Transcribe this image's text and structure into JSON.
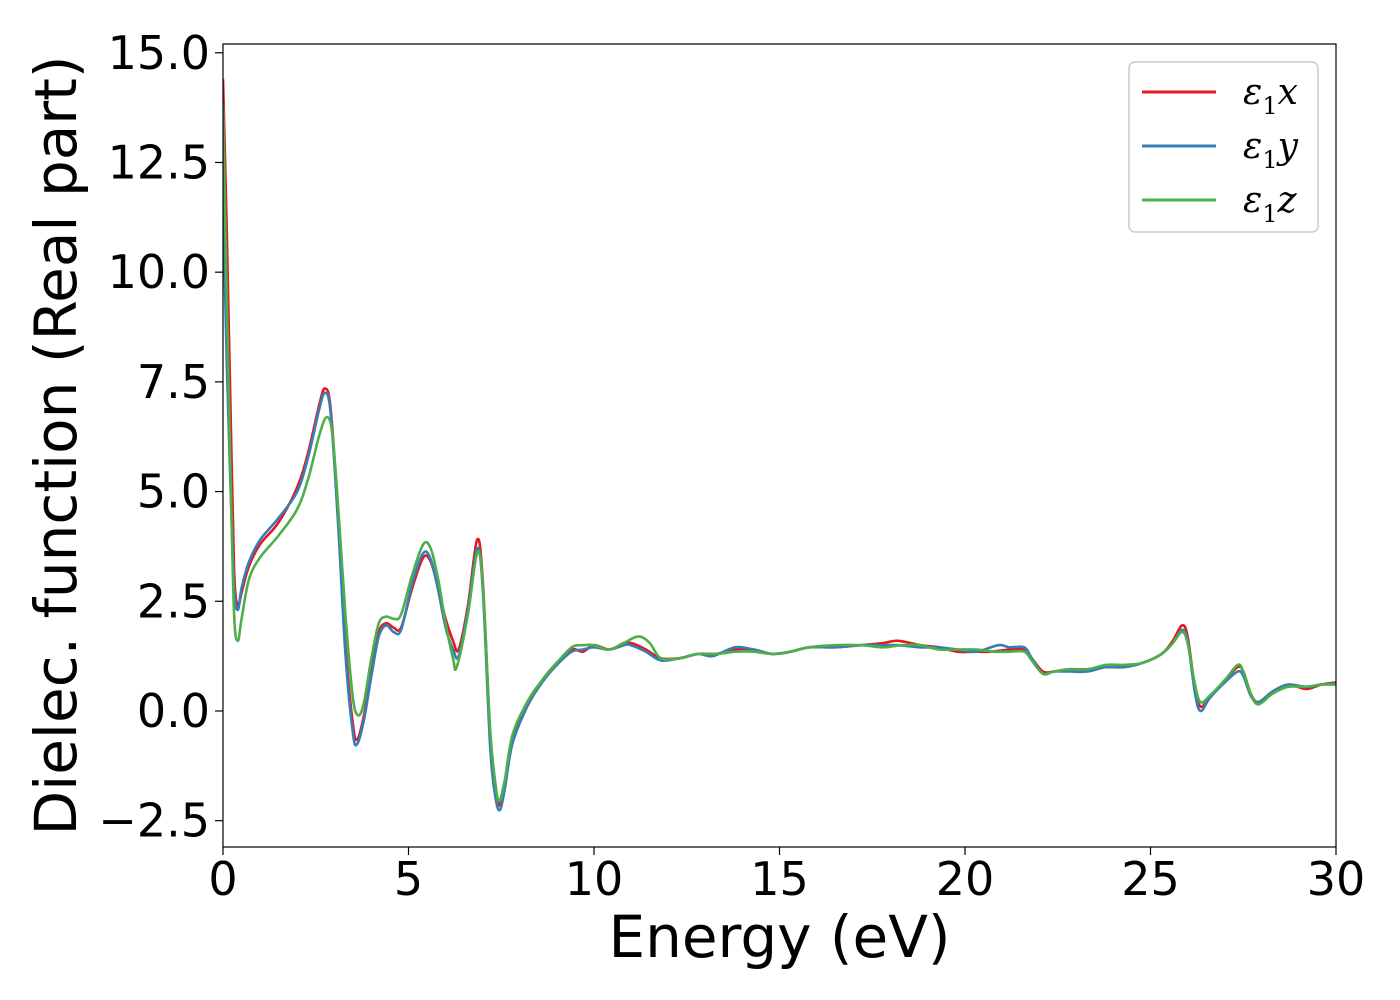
{
  "chart_data": {
    "type": "line",
    "title": "",
    "xlabel": "Energy (eV)",
    "ylabel": "Dielec. function (Real part)",
    "xlim": [
      0,
      30
    ],
    "ylim": [
      -3.1,
      15.2
    ],
    "x_ticks": [
      "0",
      "5",
      "10",
      "15",
      "20",
      "25",
      "30"
    ],
    "y_ticks": [
      "−2.5",
      "0.0",
      "2.5",
      "5.0",
      "7.5",
      "10.0",
      "12.5",
      "15.0"
    ],
    "grid": false,
    "legend_position": "top-right",
    "series": [
      {
        "name": "ε1x",
        "legend_base": "ε",
        "legend_sub": "1",
        "legend_var": "x",
        "color": "#e41a1c",
        "points": [
          [
            0.0,
            14.4
          ],
          [
            0.1,
            11.0
          ],
          [
            0.2,
            7.0
          ],
          [
            0.3,
            3.2
          ],
          [
            0.4,
            2.4
          ],
          [
            0.5,
            2.7
          ],
          [
            0.7,
            3.3
          ],
          [
            1.0,
            3.8
          ],
          [
            1.5,
            4.3
          ],
          [
            2.0,
            5.1
          ],
          [
            2.3,
            5.9
          ],
          [
            2.6,
            7.0
          ],
          [
            2.75,
            7.35
          ],
          [
            2.9,
            6.9
          ],
          [
            3.1,
            4.5
          ],
          [
            3.3,
            1.5
          ],
          [
            3.5,
            -0.3
          ],
          [
            3.62,
            -0.65
          ],
          [
            3.8,
            -0.1
          ],
          [
            4.0,
            0.9
          ],
          [
            4.2,
            1.8
          ],
          [
            4.4,
            2.0
          ],
          [
            4.6,
            1.9
          ],
          [
            4.8,
            1.9
          ],
          [
            5.1,
            2.8
          ],
          [
            5.4,
            3.5
          ],
          [
            5.6,
            3.4
          ],
          [
            5.8,
            2.8
          ],
          [
            6.0,
            2.1
          ],
          [
            6.2,
            1.6
          ],
          [
            6.35,
            1.4
          ],
          [
            6.6,
            2.4
          ],
          [
            6.85,
            3.9
          ],
          [
            7.0,
            3.0
          ],
          [
            7.2,
            -0.5
          ],
          [
            7.35,
            -1.8
          ],
          [
            7.45,
            -2.15
          ],
          [
            7.6,
            -1.6
          ],
          [
            7.8,
            -0.6
          ],
          [
            8.2,
            0.2
          ],
          [
            8.6,
            0.7
          ],
          [
            9.0,
            1.1
          ],
          [
            9.4,
            1.4
          ],
          [
            9.7,
            1.35
          ],
          [
            10.0,
            1.5
          ],
          [
            10.4,
            1.4
          ],
          [
            10.8,
            1.5
          ],
          [
            11.0,
            1.55
          ],
          [
            11.4,
            1.4
          ],
          [
            11.8,
            1.2
          ],
          [
            12.3,
            1.2
          ],
          [
            12.8,
            1.3
          ],
          [
            13.3,
            1.3
          ],
          [
            13.8,
            1.4
          ],
          [
            14.3,
            1.4
          ],
          [
            14.8,
            1.3
          ],
          [
            15.3,
            1.35
          ],
          [
            15.8,
            1.45
          ],
          [
            16.5,
            1.45
          ],
          [
            17.2,
            1.5
          ],
          [
            17.8,
            1.55
          ],
          [
            18.2,
            1.6
          ],
          [
            18.8,
            1.5
          ],
          [
            19.3,
            1.45
          ],
          [
            19.8,
            1.35
          ],
          [
            20.3,
            1.35
          ],
          [
            20.7,
            1.35
          ],
          [
            21.2,
            1.4
          ],
          [
            21.6,
            1.4
          ],
          [
            21.8,
            1.2
          ],
          [
            22.1,
            0.9
          ],
          [
            22.4,
            0.9
          ],
          [
            22.8,
            0.95
          ],
          [
            23.3,
            0.95
          ],
          [
            23.8,
            1.0
          ],
          [
            24.3,
            1.0
          ],
          [
            24.8,
            1.1
          ],
          [
            25.3,
            1.3
          ],
          [
            25.6,
            1.6
          ],
          [
            25.85,
            1.95
          ],
          [
            26.0,
            1.7
          ],
          [
            26.2,
            0.5
          ],
          [
            26.35,
            0.1
          ],
          [
            26.6,
            0.3
          ],
          [
            27.0,
            0.7
          ],
          [
            27.35,
            1.0
          ],
          [
            27.5,
            0.9
          ],
          [
            27.7,
            0.4
          ],
          [
            27.9,
            0.2
          ],
          [
            28.3,
            0.4
          ],
          [
            28.7,
            0.6
          ],
          [
            29.2,
            0.5
          ],
          [
            29.6,
            0.6
          ],
          [
            30.0,
            0.65
          ]
        ]
      },
      {
        "name": "ε1y",
        "legend_base": "ε",
        "legend_sub": "1",
        "legend_var": "y",
        "color": "#377eb8",
        "points": [
          [
            0.0,
            11.8
          ],
          [
            0.1,
            8.0
          ],
          [
            0.2,
            5.2
          ],
          [
            0.3,
            2.8
          ],
          [
            0.4,
            2.3
          ],
          [
            0.5,
            2.8
          ],
          [
            0.7,
            3.4
          ],
          [
            1.0,
            3.9
          ],
          [
            1.5,
            4.4
          ],
          [
            2.0,
            5.0
          ],
          [
            2.3,
            5.8
          ],
          [
            2.6,
            6.9
          ],
          [
            2.75,
            7.25
          ],
          [
            2.9,
            6.8
          ],
          [
            3.1,
            4.3
          ],
          [
            3.3,
            1.3
          ],
          [
            3.5,
            -0.5
          ],
          [
            3.62,
            -0.75
          ],
          [
            3.8,
            -0.2
          ],
          [
            4.0,
            0.8
          ],
          [
            4.2,
            1.7
          ],
          [
            4.4,
            1.95
          ],
          [
            4.6,
            1.8
          ],
          [
            4.8,
            1.85
          ],
          [
            5.1,
            2.9
          ],
          [
            5.4,
            3.6
          ],
          [
            5.6,
            3.45
          ],
          [
            5.8,
            2.75
          ],
          [
            6.0,
            1.9
          ],
          [
            6.2,
            1.4
          ],
          [
            6.35,
            1.25
          ],
          [
            6.6,
            2.3
          ],
          [
            6.85,
            3.7
          ],
          [
            7.0,
            2.8
          ],
          [
            7.2,
            -0.8
          ],
          [
            7.35,
            -2.0
          ],
          [
            7.47,
            -2.25
          ],
          [
            7.6,
            -1.75
          ],
          [
            7.8,
            -0.75
          ],
          [
            8.2,
            0.1
          ],
          [
            8.6,
            0.65
          ],
          [
            9.0,
            1.05
          ],
          [
            9.4,
            1.35
          ],
          [
            9.7,
            1.4
          ],
          [
            10.0,
            1.45
          ],
          [
            10.4,
            1.4
          ],
          [
            10.8,
            1.5
          ],
          [
            11.0,
            1.5
          ],
          [
            11.4,
            1.35
          ],
          [
            11.8,
            1.15
          ],
          [
            12.3,
            1.2
          ],
          [
            12.8,
            1.3
          ],
          [
            13.2,
            1.25
          ],
          [
            13.8,
            1.45
          ],
          [
            14.3,
            1.4
          ],
          [
            14.8,
            1.3
          ],
          [
            15.3,
            1.35
          ],
          [
            15.8,
            1.45
          ],
          [
            16.5,
            1.45
          ],
          [
            17.2,
            1.5
          ],
          [
            17.8,
            1.5
          ],
          [
            18.2,
            1.5
          ],
          [
            18.8,
            1.45
          ],
          [
            19.3,
            1.45
          ],
          [
            19.8,
            1.4
          ],
          [
            20.3,
            1.35
          ],
          [
            20.9,
            1.5
          ],
          [
            21.2,
            1.45
          ],
          [
            21.6,
            1.45
          ],
          [
            21.8,
            1.2
          ],
          [
            22.1,
            0.85
          ],
          [
            22.4,
            0.9
          ],
          [
            22.8,
            0.9
          ],
          [
            23.3,
            0.9
          ],
          [
            23.8,
            1.0
          ],
          [
            24.3,
            1.0
          ],
          [
            24.8,
            1.1
          ],
          [
            25.3,
            1.3
          ],
          [
            25.6,
            1.55
          ],
          [
            25.85,
            1.85
          ],
          [
            26.0,
            1.6
          ],
          [
            26.2,
            0.4
          ],
          [
            26.35,
            0.0
          ],
          [
            26.6,
            0.3
          ],
          [
            27.0,
            0.65
          ],
          [
            27.35,
            0.9
          ],
          [
            27.5,
            0.8
          ],
          [
            27.7,
            0.35
          ],
          [
            27.9,
            0.2
          ],
          [
            28.3,
            0.45
          ],
          [
            28.7,
            0.6
          ],
          [
            29.2,
            0.55
          ],
          [
            29.6,
            0.6
          ],
          [
            30.0,
            0.63
          ]
        ]
      },
      {
        "name": "ε1z",
        "legend_base": "ε",
        "legend_sub": "1",
        "legend_var": "z",
        "color": "#4daf4a",
        "points": [
          [
            0.0,
            13.8
          ],
          [
            0.1,
            9.5
          ],
          [
            0.2,
            5.5
          ],
          [
            0.3,
            2.2
          ],
          [
            0.4,
            1.6
          ],
          [
            0.5,
            2.1
          ],
          [
            0.7,
            3.0
          ],
          [
            1.0,
            3.5
          ],
          [
            1.5,
            4.0
          ],
          [
            2.0,
            4.6
          ],
          [
            2.3,
            5.3
          ],
          [
            2.6,
            6.3
          ],
          [
            2.8,
            6.7
          ],
          [
            2.95,
            6.3
          ],
          [
            3.1,
            4.7
          ],
          [
            3.3,
            2.2
          ],
          [
            3.5,
            0.3
          ],
          [
            3.65,
            -0.1
          ],
          [
            3.8,
            0.2
          ],
          [
            4.0,
            1.2
          ],
          [
            4.2,
            2.0
          ],
          [
            4.4,
            2.15
          ],
          [
            4.6,
            2.1
          ],
          [
            4.8,
            2.2
          ],
          [
            5.1,
            3.1
          ],
          [
            5.4,
            3.8
          ],
          [
            5.6,
            3.7
          ],
          [
            5.8,
            3.0
          ],
          [
            6.0,
            2.0
          ],
          [
            6.2,
            1.2
          ],
          [
            6.3,
            1.0
          ],
          [
            6.6,
            2.2
          ],
          [
            6.85,
            3.6
          ],
          [
            7.0,
            2.9
          ],
          [
            7.2,
            -0.4
          ],
          [
            7.35,
            -1.7
          ],
          [
            7.45,
            -2.05
          ],
          [
            7.6,
            -1.55
          ],
          [
            7.8,
            -0.55
          ],
          [
            8.2,
            0.2
          ],
          [
            8.6,
            0.7
          ],
          [
            9.0,
            1.1
          ],
          [
            9.4,
            1.45
          ],
          [
            9.7,
            1.5
          ],
          [
            10.0,
            1.5
          ],
          [
            10.4,
            1.4
          ],
          [
            10.8,
            1.55
          ],
          [
            11.2,
            1.7
          ],
          [
            11.5,
            1.55
          ],
          [
            11.8,
            1.2
          ],
          [
            12.3,
            1.2
          ],
          [
            12.8,
            1.3
          ],
          [
            13.3,
            1.3
          ],
          [
            13.8,
            1.35
          ],
          [
            14.3,
            1.35
          ],
          [
            14.8,
            1.3
          ],
          [
            15.3,
            1.35
          ],
          [
            15.8,
            1.45
          ],
          [
            16.5,
            1.5
          ],
          [
            17.2,
            1.5
          ],
          [
            17.8,
            1.45
          ],
          [
            18.3,
            1.5
          ],
          [
            18.8,
            1.5
          ],
          [
            19.3,
            1.4
          ],
          [
            19.8,
            1.4
          ],
          [
            20.3,
            1.4
          ],
          [
            20.8,
            1.35
          ],
          [
            21.2,
            1.35
          ],
          [
            21.6,
            1.35
          ],
          [
            21.8,
            1.15
          ],
          [
            22.1,
            0.85
          ],
          [
            22.4,
            0.9
          ],
          [
            22.8,
            0.95
          ],
          [
            23.3,
            0.95
          ],
          [
            23.8,
            1.05
          ],
          [
            24.3,
            1.05
          ],
          [
            24.8,
            1.1
          ],
          [
            25.3,
            1.3
          ],
          [
            25.6,
            1.55
          ],
          [
            25.85,
            1.8
          ],
          [
            26.0,
            1.55
          ],
          [
            26.2,
            0.6
          ],
          [
            26.35,
            0.2
          ],
          [
            26.6,
            0.35
          ],
          [
            27.0,
            0.7
          ],
          [
            27.35,
            1.05
          ],
          [
            27.5,
            0.9
          ],
          [
            27.7,
            0.4
          ],
          [
            27.9,
            0.15
          ],
          [
            28.3,
            0.4
          ],
          [
            28.7,
            0.55
          ],
          [
            29.2,
            0.55
          ],
          [
            29.6,
            0.6
          ],
          [
            30.0,
            0.6
          ]
        ]
      }
    ]
  }
}
